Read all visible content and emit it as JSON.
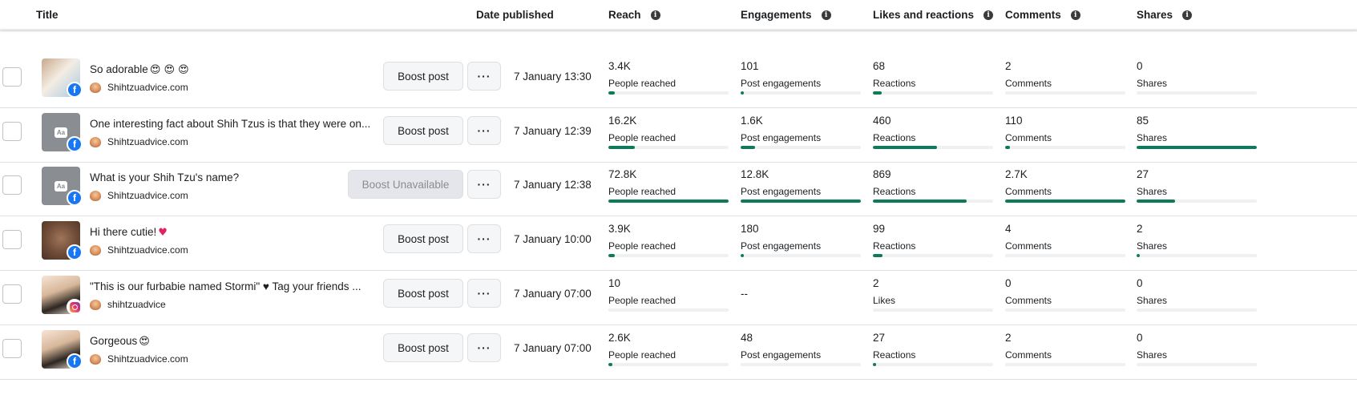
{
  "header": {
    "columns": [
      {
        "label": "Title",
        "info": false
      },
      {
        "label": "Date published",
        "info": false
      },
      {
        "label": "Reach",
        "info": true
      },
      {
        "label": "Engagements",
        "info": true
      },
      {
        "label": "Likes and reactions",
        "info": true
      },
      {
        "label": "Comments",
        "info": true
      },
      {
        "label": "Shares",
        "info": true
      }
    ]
  },
  "metric_columns": [
    "reach",
    "engagements",
    "likes",
    "comments",
    "shares"
  ],
  "rows": [
    {
      "thumb": "photo-c",
      "platform": "instagram",
      "title": "",
      "title_emoji": "",
      "page": "shihtzuadvice",
      "boost_label": "",
      "boost_state": "partial",
      "date": "",
      "metrics": {
        "reach": {
          "value": "",
          "label": "People reached",
          "fill": 0
        },
        "engagements": {
          "value": "",
          "label": "Post engagements",
          "fill": 0
        },
        "likes": {
          "value": "",
          "label": "Likes",
          "fill": 0
        },
        "comments": {
          "value": "",
          "label": "Comments",
          "fill": 0
        },
        "shares": {
          "value": "",
          "label": "Shares",
          "fill": 0
        }
      }
    },
    {
      "thumb": "photo-a",
      "platform": "facebook",
      "title": "So adorable",
      "title_emoji": "😍 😍 😍",
      "page": "Shihtzuadvice.com",
      "boost_label": "Boost post",
      "boost_state": "enabled",
      "date": "7 January 13:30",
      "metrics": {
        "reach": {
          "value": "3.4K",
          "label": "People reached",
          "fill": 0.05
        },
        "engagements": {
          "value": "101",
          "label": "Post engagements",
          "fill": 0.01
        },
        "likes": {
          "value": "68",
          "label": "Reactions",
          "fill": 0.07
        },
        "comments": {
          "value": "2",
          "label": "Comments",
          "fill": 0.0
        },
        "shares": {
          "value": "0",
          "label": "Shares",
          "fill": 0
        }
      }
    },
    {
      "thumb": "text-post",
      "platform": "facebook",
      "title": "One interesting fact about Shih Tzus is that they were on...",
      "title_emoji": "",
      "page": "Shihtzuadvice.com",
      "boost_label": "Boost post",
      "boost_state": "enabled",
      "date": "7 January 12:39",
      "metrics": {
        "reach": {
          "value": "16.2K",
          "label": "People reached",
          "fill": 0.22
        },
        "engagements": {
          "value": "1.6K",
          "label": "Post engagements",
          "fill": 0.12
        },
        "likes": {
          "value": "460",
          "label": "Reactions",
          "fill": 0.53
        },
        "comments": {
          "value": "110",
          "label": "Comments",
          "fill": 0.04
        },
        "shares": {
          "value": "85",
          "label": "Shares",
          "fill": 1.0
        }
      }
    },
    {
      "thumb": "text-post",
      "platform": "facebook",
      "title": "What is your Shih Tzu's name?",
      "title_emoji": "",
      "page": "Shihtzuadvice.com",
      "boost_label": "Boost Unavailable",
      "boost_state": "disabled",
      "date": "7 January 12:38",
      "metrics": {
        "reach": {
          "value": "72.8K",
          "label": "People reached",
          "fill": 1.0
        },
        "engagements": {
          "value": "12.8K",
          "label": "Post engagements",
          "fill": 1.0
        },
        "likes": {
          "value": "869",
          "label": "Reactions",
          "fill": 0.78
        },
        "comments": {
          "value": "2.7K",
          "label": "Comments",
          "fill": 1.0
        },
        "shares": {
          "value": "27",
          "label": "Shares",
          "fill": 0.32
        }
      }
    },
    {
      "thumb": "photo-b",
      "platform": "facebook",
      "title": "Hi there cutie!",
      "title_emoji": "♥",
      "page": "Shihtzuadvice.com",
      "boost_label": "Boost post",
      "boost_state": "enabled",
      "date": "7 January 10:00",
      "metrics": {
        "reach": {
          "value": "3.9K",
          "label": "People reached",
          "fill": 0.05
        },
        "engagements": {
          "value": "180",
          "label": "Post engagements",
          "fill": 0.01
        },
        "likes": {
          "value": "99",
          "label": "Reactions",
          "fill": 0.08
        },
        "comments": {
          "value": "4",
          "label": "Comments",
          "fill": 0.0
        },
        "shares": {
          "value": "2",
          "label": "Shares",
          "fill": 0.02
        }
      }
    },
    {
      "thumb": "photo-c",
      "platform": "instagram",
      "title": "\"This is our furbabie named Stormi\" ♥ Tag your friends ...",
      "title_emoji": "",
      "page": "shihtzuadvice",
      "boost_label": "Boost post",
      "boost_state": "enabled",
      "date": "7 January 07:00",
      "metrics": {
        "reach": {
          "value": "10",
          "label": "People reached",
          "fill": 0
        },
        "engagements": {
          "value": "--",
          "label": "",
          "fill": -1
        },
        "likes": {
          "value": "2",
          "label": "Likes",
          "fill": 0
        },
        "comments": {
          "value": "0",
          "label": "Comments",
          "fill": 0
        },
        "shares": {
          "value": "0",
          "label": "Shares",
          "fill": 0
        }
      }
    },
    {
      "thumb": "photo-c",
      "platform": "facebook",
      "title": "Gorgeous",
      "title_emoji": "😍",
      "page": "Shihtzuadvice.com",
      "boost_label": "Boost post",
      "boost_state": "enabled",
      "date": "7 January 07:00",
      "metrics": {
        "reach": {
          "value": "2.6K",
          "label": "People reached",
          "fill": 0.03
        },
        "engagements": {
          "value": "48",
          "label": "Post engagements",
          "fill": 0.0
        },
        "likes": {
          "value": "27",
          "label": "Reactions",
          "fill": 0.02
        },
        "comments": {
          "value": "2",
          "label": "Comments",
          "fill": 0.0
        },
        "shares": {
          "value": "0",
          "label": "Shares",
          "fill": 0
        }
      }
    }
  ]
}
